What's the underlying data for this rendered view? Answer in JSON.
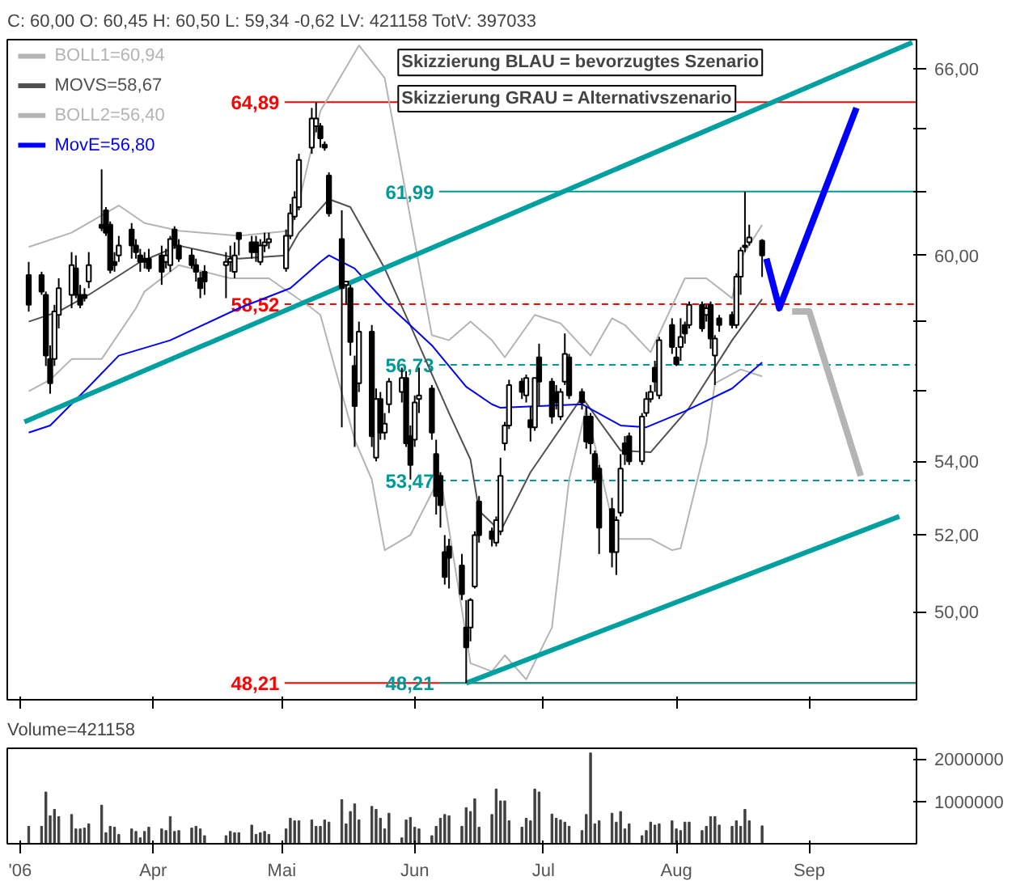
{
  "chart_data": [
    {
      "type": "candlestick",
      "title": "C: 60,00 O: 60,45 H: 60,50 L: 59,34 -0,62 LV: 421158 TotV: 397033",
      "x": [
        "2006-03-03",
        "2006-03-06",
        "2006-03-07",
        "2006-03-08",
        "2006-03-09",
        "2006-03-10",
        "2006-03-13",
        "2006-03-14",
        "2006-03-15",
        "2006-03-16",
        "2006-03-17",
        "2006-03-20",
        "2006-03-21",
        "2006-03-22",
        "2006-03-23",
        "2006-03-24",
        "2006-03-27",
        "2006-03-28",
        "2006-03-29",
        "2006-03-30",
        "2006-03-31",
        "2006-04-03",
        "2006-04-04",
        "2006-04-05",
        "2006-04-06",
        "2006-04-07",
        "2006-04-10",
        "2006-04-11",
        "2006-04-12",
        "2006-04-13",
        "2006-04-18",
        "2006-04-19",
        "2006-04-20",
        "2006-04-21",
        "2006-04-24",
        "2006-04-25",
        "2006-04-26",
        "2006-04-27",
        "2006-04-28",
        "2006-05-02",
        "2006-05-03",
        "2006-05-04",
        "2006-05-05",
        "2006-05-08",
        "2006-05-09",
        "2006-05-10",
        "2006-05-11",
        "2006-05-12",
        "2006-05-15",
        "2006-05-16",
        "2006-05-17",
        "2006-05-18",
        "2006-05-19",
        "2006-05-22",
        "2006-05-23",
        "2006-05-24",
        "2006-05-25",
        "2006-05-26",
        "2006-05-29",
        "2006-05-30",
        "2006-05-31",
        "2006-06-01",
        "2006-06-02",
        "2006-06-05",
        "2006-06-06",
        "2006-06-07",
        "2006-06-08",
        "2006-06-09",
        "2006-06-12",
        "2006-06-13",
        "2006-06-14",
        "2006-06-15",
        "2006-06-16",
        "2006-06-19",
        "2006-06-20",
        "2006-06-21",
        "2006-06-22",
        "2006-06-23",
        "2006-06-26",
        "2006-06-27",
        "2006-06-28",
        "2006-06-29",
        "2006-06-30",
        "2006-07-03",
        "2006-07-04",
        "2006-07-05",
        "2006-07-06",
        "2006-07-07",
        "2006-07-10",
        "2006-07-11",
        "2006-07-12",
        "2006-07-13",
        "2006-07-14",
        "2006-07-17",
        "2006-07-18",
        "2006-07-19",
        "2006-07-20",
        "2006-07-21",
        "2006-07-24",
        "2006-07-25",
        "2006-07-26",
        "2006-07-27",
        "2006-07-28",
        "2006-07-31",
        "2006-08-01",
        "2006-08-02",
        "2006-08-03",
        "2006-08-04",
        "2006-08-07",
        "2006-08-08",
        "2006-08-09",
        "2006-08-10",
        "2006-08-11",
        "2006-08-14",
        "2006-08-15",
        "2006-08-16",
        "2006-08-17",
        "2006-08-18",
        "2006-08-21"
      ],
      "ohlc": [
        [
          59.4,
          59.8,
          58.3,
          58.5
        ],
        [
          59.4,
          59.5,
          58.8,
          58.9
        ],
        [
          58.8,
          58.9,
          56.7,
          57.0
        ],
        [
          56.9,
          57.3,
          55.9,
          56.2
        ],
        [
          56.9,
          58.5,
          56.7,
          58.3
        ],
        [
          58.2,
          59.3,
          57.8,
          59.0
        ],
        [
          58.8,
          60.1,
          58.4,
          59.7
        ],
        [
          59.6,
          60.0,
          58.7,
          58.8
        ],
        [
          58.8,
          59.1,
          58.4,
          58.5
        ],
        [
          58.8,
          59.0,
          58.6,
          58.7
        ],
        [
          59.2,
          60.1,
          59.0,
          59.7
        ],
        [
          60.95,
          62.7,
          60.75,
          60.85
        ],
        [
          61.4,
          61.5,
          60.6,
          60.7
        ],
        [
          60.95,
          61.05,
          59.45,
          59.55
        ],
        [
          59.8,
          60.1,
          59.5,
          59.7
        ],
        [
          60.0,
          60.6,
          59.8,
          60.3
        ],
        [
          60.8,
          61.0,
          59.9,
          60.3
        ],
        [
          60.3,
          60.5,
          59.9,
          60.1
        ],
        [
          60.0,
          60.2,
          59.5,
          59.8
        ],
        [
          59.9,
          60.1,
          59.6,
          59.8
        ],
        [
          59.9,
          60.2,
          59.5,
          59.6
        ],
        [
          60.0,
          60.3,
          59.1,
          59.5
        ],
        [
          59.8,
          60.2,
          59.6,
          60.0
        ],
        [
          59.7,
          60.6,
          59.5,
          60.5
        ],
        [
          60.8,
          60.9,
          60.2,
          60.3
        ],
        [
          60.3,
          60.5,
          59.8,
          59.9
        ],
        [
          60.0,
          60.2,
          59.6,
          59.7
        ],
        [
          59.7,
          59.9,
          59.2,
          59.5
        ],
        [
          59.3,
          59.5,
          58.7,
          59.0
        ],
        [
          59.5,
          59.7,
          58.8,
          59.2
        ],
        [
          59.7,
          60.1,
          58.7,
          59.8
        ],
        [
          59.8,
          60.3,
          59.5,
          59.9
        ],
        [
          59.5,
          60.4,
          59.3,
          60.0
        ],
        [
          60.7,
          60.7,
          60.0,
          60.5
        ],
        [
          60.4,
          60.6,
          59.9,
          60.1
        ],
        [
          60.4,
          60.6,
          59.8,
          60.1
        ],
        [
          59.8,
          60.5,
          59.7,
          60.3
        ],
        [
          60.3,
          60.7,
          60.1,
          60.4
        ],
        [
          60.4,
          60.7,
          60.2,
          60.5
        ],
        [
          59.6,
          60.8,
          59.5,
          60.6
        ],
        [
          60.6,
          61.6,
          60.5,
          61.3
        ],
        [
          61.2,
          62.0,
          61.1,
          61.8
        ],
        [
          61.5,
          63.2,
          61.4,
          63.0
        ],
        [
          63.4,
          64.7,
          63.2,
          64.35
        ],
        [
          64.1,
          64.89,
          63.9,
          64.35
        ],
        [
          64.1,
          64.2,
          63.4,
          63.7
        ],
        [
          63.5,
          63.6,
          63.3,
          63.4
        ],
        [
          62.5,
          62.6,
          61.2,
          61.3
        ],
        [
          60.5,
          61.4,
          54.95,
          59.0
        ],
        [
          59.1,
          59.2,
          58.5,
          59.2
        ],
        [
          59.0,
          59.1,
          57.0,
          57.4
        ],
        [
          56.7,
          57.0,
          54.4,
          55.55
        ],
        [
          56.2,
          58.0,
          55.95,
          57.7
        ],
        [
          57.7,
          57.9,
          54.4,
          54.7
        ],
        [
          54.1,
          56.05,
          54.0,
          55.75
        ],
        [
          55.75,
          55.95,
          54.6,
          54.8
        ],
        [
          54.8,
          55.35,
          54.6,
          55.05
        ],
        [
          55.6,
          56.35,
          55.35,
          56.25
        ],
        [
          55.95,
          56.65,
          55.65,
          56.35
        ],
        [
          56.35,
          56.55,
          54.4,
          54.5
        ],
        [
          54.7,
          55.0,
          53.5,
          53.9
        ],
        [
          54.6,
          55.85,
          54.4,
          55.65
        ],
        [
          55.75,
          56.65,
          55.35,
          55.85
        ],
        [
          56.05,
          56.15,
          54.6,
          54.8
        ],
        [
          54.2,
          54.6,
          52.55,
          53.05
        ],
        [
          53.6,
          53.7,
          52.2,
          52.8
        ],
        [
          51.55,
          52.0,
          50.7,
          50.9
        ],
        [
          51.7,
          51.9,
          50.6,
          51.4
        ],
        [
          51.2,
          51.5,
          50.3,
          50.45
        ],
        [
          49.6,
          50.3,
          48.21,
          49.1
        ],
        [
          49.6,
          50.35,
          49.25,
          50.3
        ],
        [
          50.65,
          52.1,
          50.6,
          52.0
        ],
        [
          52.9,
          53.05,
          51.8,
          52.0
        ],
        [
          52.1,
          52.2,
          51.7,
          51.9
        ],
        [
          51.8,
          52.5,
          51.7,
          52.4
        ],
        [
          52.1,
          54.1,
          52.0,
          53.6
        ],
        [
          54.5,
          55.1,
          54.3,
          55.0
        ],
        [
          55.0,
          56.3,
          54.9,
          56.15
        ],
        [
          56.25,
          56.35,
          55.75,
          55.95
        ],
        [
          55.85,
          56.45,
          55.65,
          56.35
        ],
        [
          55.15,
          55.55,
          54.55,
          54.95
        ],
        [
          54.95,
          56.35,
          54.85,
          56.35
        ],
        [
          56.95,
          57.35,
          55.55,
          56.25
        ],
        [
          56.25,
          56.35,
          55.05,
          55.25
        ],
        [
          55.95,
          56.15,
          55.45,
          55.65
        ],
        [
          55.25,
          56.05,
          55.15,
          55.95
        ],
        [
          56.25,
          57.65,
          56.15,
          57.05
        ],
        [
          56.95,
          57.05,
          55.75,
          55.85
        ],
        [
          55.95,
          56.05,
          55.45,
          55.65
        ],
        [
          55.25,
          55.55,
          54.35,
          54.55
        ],
        [
          55.25,
          55.35,
          54.2,
          54.5
        ],
        [
          54.2,
          54.3,
          53.4,
          53.5
        ],
        [
          53.8,
          53.9,
          51.5,
          52.2
        ],
        [
          52.7,
          53.0,
          51.15,
          51.55
        ],
        [
          51.55,
          52.5,
          50.95,
          52.4
        ],
        [
          52.6,
          54.2,
          52.5,
          53.8
        ],
        [
          54.5,
          54.7,
          53.9,
          54.2
        ],
        [
          54.7,
          54.8,
          53.9,
          54.0
        ],
        [
          54.0,
          55.35,
          53.9,
          55.25
        ],
        [
          55.35,
          55.95,
          55.25,
          55.75
        ],
        [
          55.75,
          56.15,
          55.65,
          55.95
        ],
        [
          56.65,
          56.85,
          55.95,
          56.25
        ],
        [
          55.85,
          57.55,
          55.75,
          57.45
        ],
        [
          57.9,
          58.1,
          57.05,
          57.25
        ],
        [
          56.95,
          57.25,
          56.7,
          56.75
        ],
        [
          57.25,
          58.1,
          56.85,
          57.55
        ],
        [
          57.9,
          58.0,
          57.35,
          57.65
        ],
        [
          57.9,
          58.6,
          57.8,
          58.5
        ],
        [
          58.5,
          58.6,
          57.7,
          57.8
        ],
        [
          58.2,
          58.5,
          58.0,
          58.4
        ],
        [
          58.5,
          58.6,
          57.2,
          57.5
        ],
        [
          57.0,
          57.6,
          56.15,
          57.5
        ],
        [
          58.1,
          58.2,
          57.7,
          57.9
        ],
        [
          58.2,
          58.3,
          57.8,
          57.9
        ],
        [
          57.9,
          59.45,
          57.8,
          59.35
        ],
        [
          59.35,
          60.25,
          58.8,
          60.15
        ],
        [
          60.25,
          61.99,
          60.1,
          60.3
        ],
        [
          60.4,
          60.95,
          60.3,
          60.55
        ],
        [
          60.45,
          60.5,
          59.34,
          60.0
        ]
      ],
      "series": [
        {
          "type": "line",
          "name": "BOLL1=60,94",
          "color": "#b4b4b4",
          "x": [
            "2006-03-03",
            "2006-03-13",
            "2006-03-24",
            "2006-03-30",
            "2006-04-07",
            "2006-04-21",
            "2006-05-03",
            "2006-05-05",
            "2006-05-10",
            "2006-05-19",
            "2006-05-25",
            "2006-06-05",
            "2006-06-09",
            "2006-06-14",
            "2006-06-19",
            "2006-06-22",
            "2006-06-29",
            "2006-07-05",
            "2006-07-12",
            "2006-07-17",
            "2006-07-20",
            "2006-07-26",
            "2006-08-03",
            "2006-08-08",
            "2006-08-14",
            "2006-08-16",
            "2006-08-21"
          ],
          "values": [
            60.26,
            60.7,
            61.55,
            61.0,
            60.76,
            60.6,
            60.76,
            61.65,
            64.6,
            66.8,
            65.7,
            57.6,
            57.45,
            58.0,
            57.45,
            56.95,
            58.2,
            57.95,
            57.0,
            58.1,
            57.9,
            57.1,
            59.3,
            59.3,
            58.7,
            59.9,
            60.94
          ]
        },
        {
          "type": "line",
          "name": "MOVS=58,67",
          "color": "#505050",
          "x": [
            "2006-03-03",
            "2006-03-10",
            "2006-03-17",
            "2006-03-29",
            "2006-04-07",
            "2006-04-21",
            "2006-05-02",
            "2006-05-05",
            "2006-05-12",
            "2006-05-17",
            "2006-05-25",
            "2006-06-01",
            "2006-06-09",
            "2006-06-14",
            "2006-06-16",
            "2006-06-21",
            "2006-06-28",
            "2006-07-10",
            "2006-07-19",
            "2006-07-26",
            "2006-08-04",
            "2006-08-14",
            "2006-08-21"
          ],
          "values": [
            58.0,
            58.3,
            58.8,
            59.8,
            60.3,
            59.9,
            60.0,
            60.7,
            61.75,
            61.5,
            59.6,
            57.6,
            55.35,
            54.05,
            52.65,
            52.1,
            53.7,
            55.8,
            54.3,
            54.25,
            55.5,
            57.45,
            58.67
          ]
        },
        {
          "type": "line",
          "name": "BOLL2=56,40",
          "color": "#b4b4b4",
          "x": [
            "2006-03-03",
            "2006-03-08",
            "2006-03-13",
            "2006-03-20",
            "2006-03-28",
            "2006-03-30",
            "2006-04-07",
            "2006-04-19",
            "2006-04-28",
            "2006-05-08",
            "2006-05-10",
            "2006-05-18",
            "2006-05-22",
            "2006-05-25",
            "2006-05-31",
            "2006-06-07",
            "2006-06-14",
            "2006-06-19",
            "2006-06-22",
            "2006-06-27",
            "2006-07-03",
            "2006-07-07",
            "2006-07-11",
            "2006-07-18",
            "2006-07-26",
            "2006-07-31",
            "2006-08-02",
            "2006-08-08",
            "2006-08-10",
            "2006-08-16",
            "2006-08-21"
          ],
          "values": [
            55.97,
            56.3,
            56.9,
            56.9,
            58.4,
            58.9,
            59.7,
            59.3,
            59.3,
            58.4,
            58.2,
            54.6,
            53.5,
            51.6,
            52.0,
            53.6,
            48.7,
            48.5,
            48.9,
            48.3,
            49.6,
            53.5,
            55.5,
            51.9,
            51.9,
            51.6,
            51.65,
            54.5,
            56.2,
            56.6,
            56.4
          ]
        },
        {
          "type": "line",
          "name": "MovE=56,80",
          "color": "#0000ff",
          "x": [
            "2006-03-03",
            "2006-03-08",
            "2006-03-17",
            "2006-03-24",
            "2006-04-05",
            "2006-04-21",
            "2006-05-03",
            "2006-05-10",
            "2006-05-12",
            "2006-05-18",
            "2006-05-25",
            "2006-06-05",
            "2006-06-13",
            "2006-06-19",
            "2006-06-21",
            "2006-07-10",
            "2006-07-19",
            "2006-07-25",
            "2006-08-03",
            "2006-08-14",
            "2006-08-21"
          ],
          "values": [
            54.8,
            55.0,
            56.1,
            57.0,
            57.45,
            58.4,
            59.0,
            59.8,
            60.0,
            59.6,
            58.6,
            57.3,
            56.1,
            55.6,
            55.5,
            55.6,
            55.0,
            54.95,
            55.4,
            56.05,
            56.8
          ]
        },
        {
          "type": "line",
          "color": "#00a0a0",
          "x": [
            "2006-03-02",
            "2006-09-25"
          ],
          "values": [
            55.1,
            66.9
          ]
        },
        {
          "type": "line",
          "color": "#00a0a0",
          "x": [
            "2006-06-13",
            "2006-09-22"
          ],
          "values": [
            48.21,
            52.5
          ]
        },
        {
          "type": "line",
          "color": "#0000ff",
          "x": [
            "2006-08-22",
            "2006-08-25",
            "2006-09-12"
          ],
          "values": [
            59.9,
            58.4,
            64.7
          ]
        },
        {
          "type": "line",
          "color": "#b4b4b4",
          "x": [
            "2006-08-28",
            "2006-09-01",
            "2006-09-13"
          ],
          "values": [
            58.3,
            58.3,
            53.6
          ]
        }
      ],
      "xlim": [
        "2006-02-26",
        "2006-09-26"
      ],
      "xticks": [
        {
          "value": "2006-03-01",
          "label": null
        },
        {
          "value": "2006-04-01",
          "label": null
        },
        {
          "value": "2006-05-01",
          "label": null
        },
        {
          "value": "2006-06-01",
          "label": null
        },
        {
          "value": "2006-07-01",
          "label": null
        },
        {
          "value": "2006-08-01",
          "label": null
        },
        {
          "value": "2006-09-01",
          "label": null
        }
      ],
      "ylim": [
        47.8,
        67
      ],
      "yticks": [
        {
          "value": 50,
          "label": "50,00"
        },
        {
          "value": 52,
          "label": "52,00"
        },
        {
          "value": 54,
          "label": "54,00"
        },
        {
          "value": 56,
          "label": null
        },
        {
          "value": 58,
          "label": null
        },
        {
          "value": 60,
          "label": "60,00"
        },
        {
          "value": 62,
          "label": null
        },
        {
          "value": 64,
          "label": null
        },
        {
          "value": 66,
          "label": "66,00"
        }
      ],
      "log": "y",
      "legend": "top left",
      "tick_labels": "y",
      "ref_lines": [
        {
          "axis": "y",
          "value": 64.89,
          "label": "64,89",
          "color": "#ff0000",
          "line_style": "solid"
        },
        {
          "axis": "y",
          "value": 61.99,
          "label": "61,99",
          "color": "#009999",
          "line_style": "solid"
        },
        {
          "axis": "y",
          "value": 58.52,
          "label": "58,52",
          "color": "#ff0000",
          "line_style": "dashed"
        },
        {
          "axis": "y",
          "value": 56.73,
          "label": "56,73",
          "color": "#009999",
          "line_style": "dashed"
        },
        {
          "axis": "y",
          "value": 53.47,
          "label": "53,47",
          "color": "#009999",
          "line_style": "dashed"
        },
        {
          "axis": "y",
          "value": 48.21,
          "label": "48,21",
          "color": "#ff0000",
          "line_style": "solid"
        },
        {
          "axis": "y",
          "value": 48.21,
          "label": "48,21",
          "color": "#009999",
          "line_style": "solid"
        }
      ],
      "annotations": [
        "Skizzierung BLAU = bevorzugtes Szenario",
        "Skizzierung GRAU = Alternativszenario"
      ]
    },
    {
      "type": "bar",
      "title": "Volume=421158",
      "x": [
        "2006-03-03",
        "2006-03-06",
        "2006-03-07",
        "2006-03-08",
        "2006-03-09",
        "2006-03-10",
        "2006-03-13",
        "2006-03-14",
        "2006-03-15",
        "2006-03-16",
        "2006-03-17",
        "2006-03-20",
        "2006-03-21",
        "2006-03-22",
        "2006-03-23",
        "2006-03-24",
        "2006-03-27",
        "2006-03-28",
        "2006-03-29",
        "2006-03-30",
        "2006-03-31",
        "2006-04-03",
        "2006-04-04",
        "2006-04-05",
        "2006-04-06",
        "2006-04-07",
        "2006-04-10",
        "2006-04-11",
        "2006-04-12",
        "2006-04-13",
        "2006-04-18",
        "2006-04-19",
        "2006-04-20",
        "2006-04-21",
        "2006-04-24",
        "2006-04-25",
        "2006-04-26",
        "2006-04-27",
        "2006-04-28",
        "2006-05-02",
        "2006-05-03",
        "2006-05-04",
        "2006-05-05",
        "2006-05-08",
        "2006-05-09",
        "2006-05-10",
        "2006-05-11",
        "2006-05-12",
        "2006-05-15",
        "2006-05-16",
        "2006-05-17",
        "2006-05-18",
        "2006-05-19",
        "2006-05-22",
        "2006-05-23",
        "2006-05-24",
        "2006-05-25",
        "2006-05-26",
        "2006-05-29",
        "2006-05-30",
        "2006-05-31",
        "2006-06-01",
        "2006-06-02",
        "2006-06-05",
        "2006-06-06",
        "2006-06-07",
        "2006-06-08",
        "2006-06-09",
        "2006-06-12",
        "2006-06-13",
        "2006-06-14",
        "2006-06-15",
        "2006-06-16",
        "2006-06-19",
        "2006-06-20",
        "2006-06-21",
        "2006-06-22",
        "2006-06-23",
        "2006-06-26",
        "2006-06-27",
        "2006-06-28",
        "2006-06-29",
        "2006-06-30",
        "2006-07-03",
        "2006-07-04",
        "2006-07-05",
        "2006-07-06",
        "2006-07-07",
        "2006-07-10",
        "2006-07-11",
        "2006-07-12",
        "2006-07-13",
        "2006-07-14",
        "2006-07-17",
        "2006-07-18",
        "2006-07-19",
        "2006-07-20",
        "2006-07-21",
        "2006-07-24",
        "2006-07-25",
        "2006-07-26",
        "2006-07-27",
        "2006-07-28",
        "2006-07-31",
        "2006-08-01",
        "2006-08-02",
        "2006-08-03",
        "2006-08-04",
        "2006-08-07",
        "2006-08-08",
        "2006-08-09",
        "2006-08-10",
        "2006-08-11",
        "2006-08-14",
        "2006-08-15",
        "2006-08-16",
        "2006-08-17",
        "2006-08-18",
        "2006-08-21"
      ],
      "values": [
        410000,
        410000,
        1220000,
        660000,
        810000,
        640000,
        690000,
        350000,
        350000,
        370000,
        470000,
        910000,
        260000,
        410000,
        390000,
        220000,
        350000,
        290000,
        140000,
        290000,
        390000,
        350000,
        310000,
        640000,
        290000,
        310000,
        370000,
        410000,
        350000,
        190000,
        190000,
        290000,
        260000,
        260000,
        440000,
        220000,
        260000,
        290000,
        220000,
        350000,
        600000,
        540000,
        540000,
        560000,
        410000,
        410000,
        560000,
        510000,
        1040000,
        470000,
        760000,
        940000,
        560000,
        880000,
        810000,
        600000,
        350000,
        720000,
        140000,
        560000,
        620000,
        390000,
        350000,
        190000,
        410000,
        600000,
        690000,
        660000,
        410000,
        850000,
        760000,
        1060000,
        390000,
        690000,
        1290000,
        1010000,
        1010000,
        540000,
        390000,
        600000,
        540000,
        1290000,
        1220000,
        700000,
        600000,
        560000,
        510000,
        410000,
        310000,
        690000,
        2140000,
        470000,
        540000,
        720000,
        510000,
        760000,
        350000,
        470000,
        190000,
        310000,
        510000,
        440000,
        470000,
        540000,
        350000,
        310000,
        510000,
        510000,
        310000,
        410000,
        640000,
        640000,
        440000,
        410000,
        540000,
        410000,
        810000,
        540000,
        421158
      ],
      "color": "#404040",
      "xlim": [
        "2006-02-26",
        "2006-09-26"
      ],
      "xticks": [
        {
          "value": "2006-03-01",
          "label": "'06"
        },
        {
          "value": "2006-04-01",
          "label": "Apr"
        },
        {
          "value": "2006-05-01",
          "label": "Mai"
        },
        {
          "value": "2006-06-01",
          "label": "Jun"
        },
        {
          "value": "2006-07-01",
          "label": "Jul"
        },
        {
          "value": "2006-08-01",
          "label": "Aug"
        },
        {
          "value": "2006-09-01",
          "label": "Sep"
        }
      ],
      "ylim": [
        0,
        2250000
      ],
      "yticks": [
        1000000,
        2000000
      ]
    }
  ]
}
